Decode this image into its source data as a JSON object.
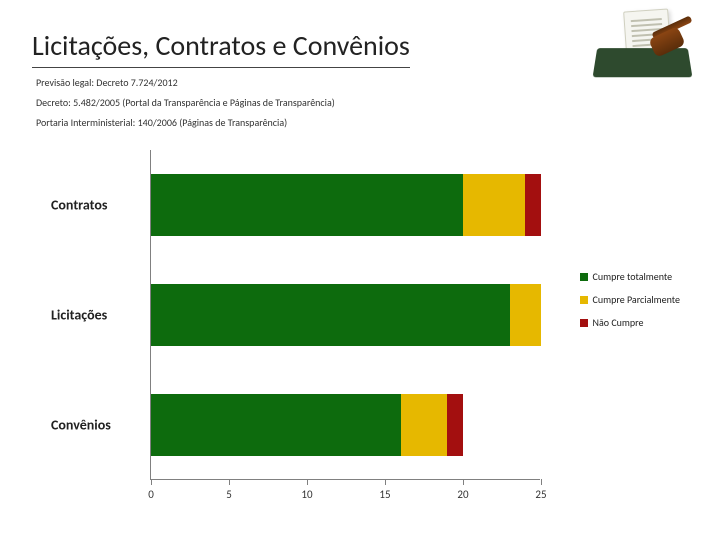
{
  "title": "Licitações, Contratos e Convênios",
  "subtitles": [
    "Previsão legal: Decreto 7.724/2012",
    "Decreto: 5.482/2005  (Portal da Transparência e Páginas de Transparência)",
    "Portaria Interministerial: 140/2006  (Páginas de Transparência)"
  ],
  "chart": {
    "type": "stacked-horizontal-bar",
    "x_axis": {
      "min": 0,
      "max": 25,
      "tick_step": 5
    },
    "categories": [
      "Contratos",
      "Licitações",
      "Convênios"
    ],
    "series": [
      {
        "name": "Cumpre totalmente",
        "color": "#0d6b0d"
      },
      {
        "name": "Cumpre Parcialmente",
        "color": "#e6b800"
      },
      {
        "name": "Não Cumpre",
        "color": "#a30f0f"
      }
    ],
    "data": [
      {
        "category": "Contratos",
        "values": [
          20,
          4,
          1
        ]
      },
      {
        "category": "Licitações",
        "values": [
          23,
          2,
          0
        ]
      },
      {
        "category": "Convênios",
        "values": [
          16,
          3,
          1
        ]
      }
    ],
    "label_fontsize": 14,
    "tick_fontsize": 11,
    "axis_color": "#808080",
    "background_color": "#ffffff"
  },
  "legend": {
    "items": [
      {
        "label": "Cumpre totalmente",
        "color": "#0d6b0d"
      },
      {
        "label": "Cumpre Parcialmente",
        "color": "#e6b800"
      },
      {
        "label": "Não Cumpre",
        "color": "#a30f0f"
      }
    ]
  }
}
